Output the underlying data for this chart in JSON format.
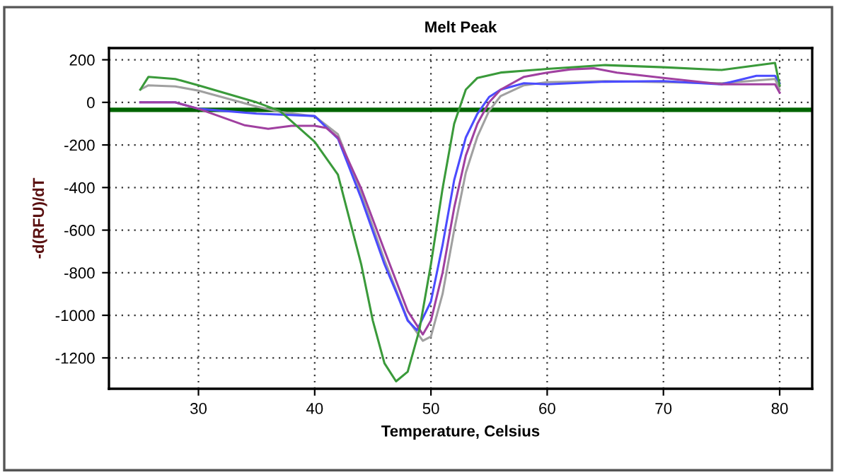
{
  "chart_data": {
    "type": "line",
    "title": "Melt Peak",
    "xlabel": "Temperature, Celsius",
    "ylabel": "-d(RFU)/dT",
    "xlim": [
      22.3,
      82.8
    ],
    "ylim": [
      -1345,
      255
    ],
    "xticks": [
      30,
      40,
      50,
      60,
      70,
      80
    ],
    "yticks": [
      -1200,
      -1000,
      -800,
      -600,
      -400,
      -200,
      0,
      200
    ],
    "grid": true,
    "line_style": "solid",
    "marker": "none",
    "ref_lines": [
      {
        "axis": "y",
        "value": -35,
        "label": null,
        "color": "#006400",
        "line_style": "solid"
      }
    ],
    "series": [
      {
        "color": "#a0a0a0",
        "x": [
          25,
          25.7,
          28,
          30,
          35,
          37,
          40,
          42,
          44,
          46,
          48,
          49.3,
          50,
          51,
          52,
          53,
          54,
          55,
          56,
          58,
          60,
          65,
          70,
          75,
          79.6,
          80
        ],
        "values": [
          60,
          80,
          75,
          55,
          -20,
          -45,
          -65,
          -150,
          -430,
          -740,
          -1020,
          -1120,
          -1100,
          -900,
          -600,
          -330,
          -160,
          -40,
          30,
          80,
          95,
          100,
          95,
          90,
          110,
          60
        ]
      },
      {
        "color": "#4b4bff",
        "x": [
          25,
          28,
          30,
          35,
          40,
          42,
          44,
          46,
          47,
          48,
          48.8,
          50,
          51,
          52,
          53,
          54,
          55,
          56,
          58,
          60,
          65,
          70,
          75,
          78,
          79.6,
          80
        ],
        "values": [
          0,
          0,
          -30,
          -53,
          -64,
          -170,
          -450,
          -760,
          -890,
          -1025,
          -1070,
          -935,
          -670,
          -365,
          -165,
          -53,
          25,
          60,
          90,
          85,
          97,
          100,
          85,
          125,
          125,
          90
        ]
      },
      {
        "color": "#a040a0",
        "x": [
          25,
          28,
          30,
          34,
          36,
          38,
          40,
          41,
          42,
          44,
          46,
          48,
          49.3,
          50,
          51,
          52,
          53,
          54,
          55,
          56,
          58,
          60,
          62,
          64,
          66,
          70,
          75,
          79.6,
          80
        ],
        "values": [
          0,
          0,
          -30,
          -108,
          -124,
          -110,
          -110,
          -120,
          -165,
          -405,
          -695,
          -980,
          -1090,
          -1025,
          -800,
          -495,
          -250,
          -100,
          0,
          60,
          120,
          140,
          155,
          160,
          140,
          115,
          85,
          85,
          45
        ]
      },
      {
        "color": "#3a9a3a",
        "x": [
          25,
          25.7,
          28,
          30,
          35,
          37,
          40,
          42,
          44,
          45,
          46,
          47,
          48,
          49,
          50,
          51,
          52,
          53,
          54,
          56,
          60,
          65,
          70,
          75,
          79.6,
          80
        ],
        "values": [
          60,
          120,
          110,
          80,
          0,
          -40,
          -185,
          -340,
          -760,
          -1025,
          -1225,
          -1310,
          -1265,
          -1070,
          -760,
          -405,
          -100,
          60,
          115,
          140,
          157,
          175,
          165,
          152,
          185,
          80
        ]
      }
    ]
  }
}
